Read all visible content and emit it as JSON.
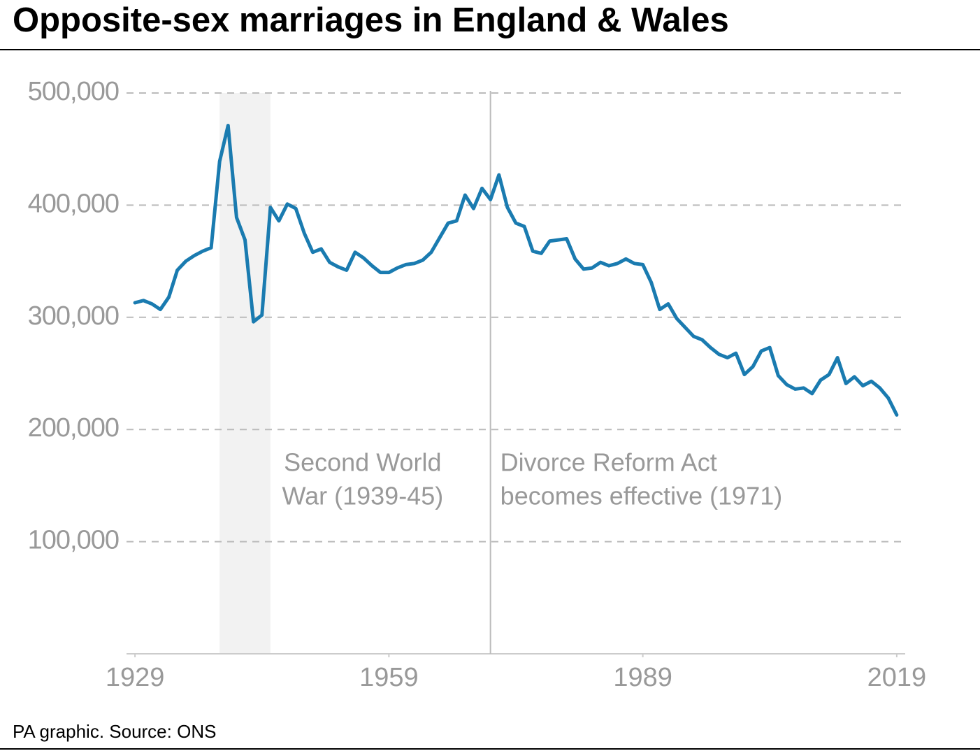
{
  "chart_data": {
    "type": "line",
    "title": "Opposite-sex marriages in England & Wales",
    "source": "PA graphic. Source: ONS",
    "x": [
      1929,
      1930,
      1931,
      1932,
      1933,
      1934,
      1935,
      1936,
      1937,
      1938,
      1939,
      1940,
      1941,
      1942,
      1943,
      1944,
      1945,
      1946,
      1947,
      1948,
      1949,
      1950,
      1951,
      1952,
      1953,
      1954,
      1955,
      1956,
      1957,
      1958,
      1959,
      1960,
      1961,
      1962,
      1963,
      1964,
      1965,
      1966,
      1967,
      1968,
      1969,
      1970,
      1971,
      1972,
      1973,
      1974,
      1975,
      1976,
      1977,
      1978,
      1979,
      1980,
      1981,
      1982,
      1983,
      1984,
      1985,
      1986,
      1987,
      1988,
      1989,
      1990,
      1991,
      1992,
      1993,
      1994,
      1995,
      1996,
      1997,
      1998,
      1999,
      2000,
      2001,
      2002,
      2003,
      2004,
      2005,
      2006,
      2007,
      2008,
      2009,
      2010,
      2011,
      2012,
      2013,
      2014,
      2015,
      2016,
      2017,
      2018,
      2019
    ],
    "series": [
      {
        "color": "#1a7bb0",
        "values": [
          313000,
          315000,
          312000,
          307000,
          318000,
          342000,
          350000,
          355000,
          359000,
          362000,
          439000,
          471000,
          389000,
          369000,
          296000,
          302000,
          398000,
          386000,
          401000,
          397000,
          375000,
          358000,
          361000,
          349000,
          345000,
          342000,
          358000,
          353000,
          346000,
          340000,
          340000,
          344000,
          347000,
          348000,
          351000,
          358000,
          371000,
          384000,
          386000,
          409000,
          397000,
          415000,
          405000,
          427000,
          398000,
          384000,
          381000,
          359000,
          357000,
          368000,
          369000,
          370000,
          352000,
          343000,
          344000,
          349000,
          346000,
          348000,
          352000,
          348000,
          347000,
          331000,
          307000,
          312000,
          299000,
          291000,
          283000,
          280000,
          273000,
          267000,
          264000,
          268000,
          249000,
          256000,
          270000,
          273000,
          248000,
          240000,
          236000,
          237000,
          232000,
          244000,
          249000,
          264000,
          241000,
          247000,
          239000,
          243000,
          237000,
          228000,
          213000
        ]
      }
    ],
    "xlim": [
      1928,
      2020
    ],
    "xticks": [
      1929,
      1959,
      1989,
      2019
    ],
    "ylim": [
      0,
      500000
    ],
    "yticks": [
      {
        "value": 100000,
        "label": "100,000"
      },
      {
        "value": 200000,
        "label": "200,000"
      },
      {
        "value": 300000,
        "label": "300,000"
      },
      {
        "value": 400000,
        "label": "400,000"
      },
      {
        "value": 500000,
        "label": "500,000"
      }
    ],
    "grid": true,
    "shaded_range": {
      "x": [
        1939,
        1945
      ],
      "label": [
        "Second World",
        "War (1939-45)"
      ]
    },
    "marker_line": {
      "x": 1971,
      "label": [
        "Divorce Reform Act",
        "becomes effective (1971)"
      ]
    }
  }
}
